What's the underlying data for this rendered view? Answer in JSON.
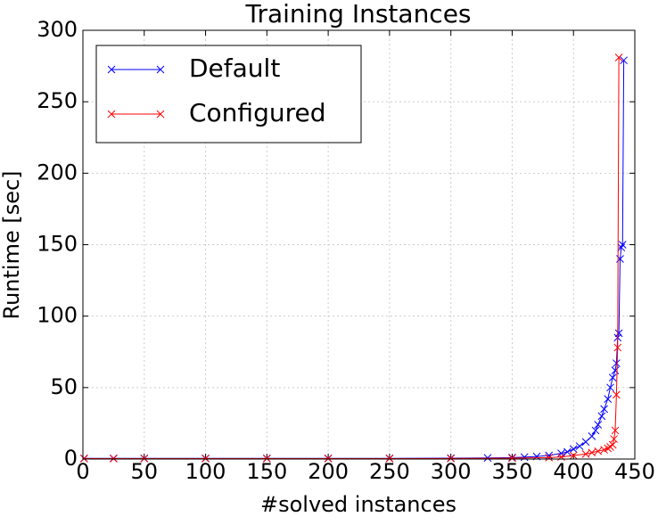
{
  "chart_data": {
    "type": "line",
    "title": "Training Instances",
    "x_label": "#solved instances",
    "y_label": "Runtime [sec]",
    "series": [
      {
        "name": "Default",
        "color": "#0000ff",
        "x": [
          1,
          25,
          50,
          100,
          150,
          200,
          250,
          300,
          330,
          350,
          360,
          370,
          380,
          390,
          395,
          400,
          405,
          410,
          415,
          418,
          420,
          423,
          425,
          428,
          430,
          432,
          434,
          435,
          436,
          437,
          438,
          439,
          440,
          441
        ],
        "values": [
          0.5,
          0.5,
          0.5,
          0.5,
          0.5,
          0.5,
          0.5,
          0.6,
          0.8,
          1,
          1.3,
          1.8,
          2.5,
          4,
          5,
          7,
          9,
          12,
          16,
          20,
          24,
          30,
          35,
          42,
          50,
          57,
          62,
          67,
          85,
          88,
          140,
          148,
          150,
          279
        ]
      },
      {
        "name": "Configured",
        "color": "#ff0000",
        "x": [
          1,
          25,
          50,
          100,
          150,
          200,
          250,
          300,
          350,
          380,
          390,
          400,
          410,
          415,
          420,
          425,
          428,
          430,
          432,
          433,
          434,
          435,
          436,
          437
        ],
        "values": [
          0.3,
          0.3,
          0.3,
          0.3,
          0.3,
          0.3,
          0.3,
          0.4,
          0.6,
          1,
          1.5,
          2.5,
          3.5,
          4.5,
          5.5,
          6.5,
          7.5,
          8.5,
          10,
          14,
          20,
          45,
          78,
          281
        ]
      }
    ],
    "xlim": [
      0,
      450
    ],
    "xticks": [
      0,
      50,
      100,
      150,
      200,
      250,
      300,
      350,
      400,
      450
    ],
    "ylim": [
      0,
      300
    ],
    "yticks": [
      0,
      50,
      100,
      150,
      200,
      250,
      300
    ],
    "grid": true,
    "legend": "upper left"
  }
}
